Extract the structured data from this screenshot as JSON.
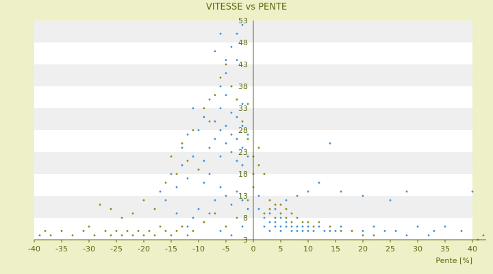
{
  "chart_data": {
    "type": "scatter",
    "title": "VITESSE vs PENTE",
    "xlabel": "Pente [%]",
    "ylabel": "",
    "xlim": [
      -40,
      40
    ],
    "ylim": [
      3,
      53
    ],
    "x_ticks": [
      "-40",
      "-35",
      "-30",
      "-25",
      "-20",
      "-15",
      "-10",
      "-5",
      "0",
      "5",
      "10",
      "15",
      "20",
      "25",
      "30",
      "35",
      "40"
    ],
    "y_ticks": [
      "3",
      "8",
      "13",
      "18",
      "23",
      "28",
      "33",
      "38",
      "43",
      "48",
      "53"
    ],
    "grid": "horizontal alternating bands",
    "colors": {
      "background": "#eef0c8",
      "band_light": "#ffffff",
      "band_dark": "#efefef",
      "axis": "#556b0f",
      "series_blue": "#3c8fdc",
      "series_olive": "#8a8a10"
    },
    "series": [
      {
        "color": "#3c8fdc",
        "points": [
          [
            -9,
            21
          ],
          [
            -8,
            24
          ],
          [
            -7,
            26
          ],
          [
            -7,
            30
          ],
          [
            -6,
            22
          ],
          [
            -6,
            28
          ],
          [
            -6,
            33
          ],
          [
            -5,
            25
          ],
          [
            -5,
            29
          ],
          [
            -5,
            36
          ],
          [
            -5,
            41
          ],
          [
            -4,
            23
          ],
          [
            -4,
            27
          ],
          [
            -4,
            32
          ],
          [
            -4,
            38
          ],
          [
            -3,
            21
          ],
          [
            -3,
            26
          ],
          [
            -3,
            31
          ],
          [
            -3,
            44
          ],
          [
            -2,
            20
          ],
          [
            -2,
            24
          ],
          [
            -2,
            29
          ],
          [
            -2,
            34
          ],
          [
            -1,
            22
          ],
          [
            -1,
            27
          ],
          [
            -8,
            18
          ],
          [
            -9,
            16
          ],
          [
            -10,
            19
          ],
          [
            -11,
            22
          ],
          [
            -12,
            17
          ],
          [
            -13,
            20
          ],
          [
            -14,
            15
          ],
          [
            -15,
            18
          ],
          [
            -16,
            12
          ],
          [
            -17,
            14
          ],
          [
            -7,
            46
          ],
          [
            -6,
            50
          ],
          [
            -4,
            47
          ],
          [
            -3,
            50
          ],
          [
            -2,
            52
          ],
          [
            -5,
            44
          ],
          [
            -6,
            38
          ],
          [
            -8,
            35
          ],
          [
            -9,
            31
          ],
          [
            -10,
            28
          ],
          [
            -11,
            33
          ],
          [
            -12,
            27
          ],
          [
            -13,
            24
          ],
          [
            -6,
            15
          ],
          [
            -5,
            13
          ],
          [
            -4,
            11
          ],
          [
            -3,
            14
          ],
          [
            -2,
            12
          ],
          [
            -1,
            10
          ],
          [
            -7,
            12
          ],
          [
            -8,
            9
          ],
          [
            -9,
            7
          ],
          [
            -10,
            10
          ],
          [
            -11,
            8
          ],
          [
            -12,
            6
          ],
          [
            -14,
            9
          ],
          [
            -6,
            5
          ],
          [
            -4,
            4
          ],
          [
            -2,
            6
          ],
          [
            1,
            13
          ],
          [
            1,
            10
          ],
          [
            2,
            8
          ],
          [
            2,
            6
          ],
          [
            3,
            7
          ],
          [
            3,
            5
          ],
          [
            3,
            9
          ],
          [
            4,
            6
          ],
          [
            4,
            7
          ],
          [
            5,
            5
          ],
          [
            5,
            8
          ],
          [
            5,
            6
          ],
          [
            6,
            6
          ],
          [
            6,
            7
          ],
          [
            7,
            5
          ],
          [
            7,
            6
          ],
          [
            8,
            6
          ],
          [
            8,
            5
          ],
          [
            9,
            6
          ],
          [
            9,
            5
          ],
          [
            10,
            5
          ],
          [
            10,
            6
          ],
          [
            11,
            5
          ],
          [
            12,
            6
          ],
          [
            13,
            5
          ],
          [
            14,
            5
          ],
          [
            15,
            5
          ],
          [
            16,
            6
          ],
          [
            18,
            5
          ],
          [
            20,
            5
          ],
          [
            22,
            6
          ],
          [
            4,
            10
          ],
          [
            6,
            12
          ],
          [
            8,
            13
          ],
          [
            10,
            14
          ],
          [
            12,
            16
          ],
          [
            14,
            25
          ],
          [
            16,
            14
          ],
          [
            20,
            13
          ],
          [
            25,
            12
          ],
          [
            28,
            14
          ],
          [
            30,
            6
          ],
          [
            33,
            5
          ],
          [
            35,
            6
          ],
          [
            38,
            5
          ],
          [
            40,
            14
          ],
          [
            24,
            5
          ],
          [
            26,
            5
          ],
          [
            28,
            4
          ],
          [
            32,
            4
          ]
        ]
      },
      {
        "color": "#8a8a10",
        "points": [
          [
            -39,
            4
          ],
          [
            -38,
            5
          ],
          [
            -37,
            4
          ],
          [
            -35,
            5
          ],
          [
            -33,
            4
          ],
          [
            -31,
            5
          ],
          [
            -30,
            6
          ],
          [
            -29,
            4
          ],
          [
            -27,
            5
          ],
          [
            -26,
            4
          ],
          [
            -25,
            5
          ],
          [
            -24,
            4
          ],
          [
            -23,
            5
          ],
          [
            -22,
            4
          ],
          [
            -21,
            5
          ],
          [
            -20,
            4
          ],
          [
            -19,
            5
          ],
          [
            -18,
            4
          ],
          [
            -17,
            6
          ],
          [
            -16,
            5
          ],
          [
            -15,
            4
          ],
          [
            -14,
            5
          ],
          [
            -13,
            6
          ],
          [
            -12,
            4
          ],
          [
            -11,
            5
          ],
          [
            -28,
            11
          ],
          [
            -26,
            10
          ],
          [
            -24,
            8
          ],
          [
            -22,
            9
          ],
          [
            -20,
            12
          ],
          [
            -18,
            10
          ],
          [
            -16,
            16
          ],
          [
            -15,
            22
          ],
          [
            -14,
            18
          ],
          [
            -13,
            25
          ],
          [
            -12,
            21
          ],
          [
            -11,
            28
          ],
          [
            -10,
            19
          ],
          [
            -9,
            33
          ],
          [
            -8,
            30
          ],
          [
            -7,
            36
          ],
          [
            -6,
            40
          ],
          [
            -5,
            43
          ],
          [
            -4,
            38
          ],
          [
            -3,
            35
          ],
          [
            -2,
            30
          ],
          [
            -1,
            26
          ],
          [
            -1,
            34
          ],
          [
            0,
            22
          ],
          [
            0,
            18
          ],
          [
            0,
            15
          ],
          [
            1,
            20
          ],
          [
            1,
            24
          ],
          [
            2,
            18
          ],
          [
            -1,
            12
          ],
          [
            -3,
            8
          ],
          [
            -5,
            6
          ],
          [
            -7,
            9
          ],
          [
            -9,
            7
          ],
          [
            2,
            9
          ],
          [
            3,
            10
          ],
          [
            3,
            12
          ],
          [
            4,
            11
          ],
          [
            4,
            8
          ],
          [
            5,
            9
          ],
          [
            5,
            11
          ],
          [
            6,
            10
          ],
          [
            6,
            8
          ],
          [
            7,
            9
          ],
          [
            7,
            7
          ],
          [
            8,
            8
          ],
          [
            9,
            7
          ],
          [
            10,
            7
          ],
          [
            11,
            6
          ],
          [
            12,
            7
          ],
          [
            14,
            6
          ],
          [
            16,
            5
          ],
          [
            18,
            5
          ],
          [
            20,
            4
          ],
          [
            22,
            4
          ],
          [
            41,
            3
          ],
          [
            42,
            4
          ]
        ]
      }
    ]
  }
}
